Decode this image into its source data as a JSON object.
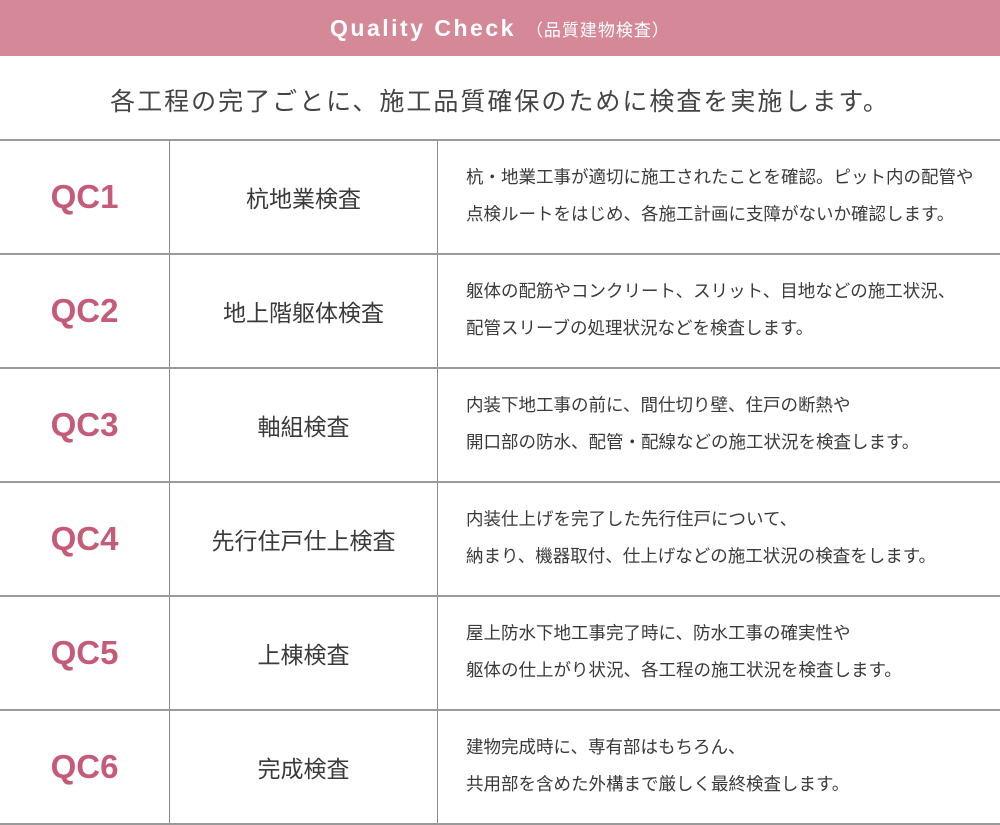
{
  "header": {
    "title_en": "Quality Check",
    "title_jp": "（品質建物検査）",
    "background": "#d48898"
  },
  "lead": "各工程の完了ごとに、施工品質確保のために検査を実施します。",
  "accent_color": "#c45b78",
  "rows": [
    {
      "code": "QC1",
      "name": "杭地業検査",
      "desc": [
        "杭・地業工事が適切に施工されたことを確認。ピット内の配管や",
        "点検ルートをはじめ、各施工計画に支障がないか確認します。"
      ]
    },
    {
      "code": "QC2",
      "name": "地上階躯体検査",
      "desc": [
        "躯体の配筋やコンクリート、スリット、目地などの施工状況、",
        "配管スリーブの処理状況などを検査します。"
      ]
    },
    {
      "code": "QC3",
      "name": "軸組検査",
      "desc": [
        "内装下地工事の前に、間仕切り壁、住戸の断熱や",
        "開口部の防水、配管・配線などの施工状況を検査します。"
      ]
    },
    {
      "code": "QC4",
      "name": "先行住戸仕上検査",
      "desc": [
        "内装仕上げを完了した先行住戸について、",
        "納まり、機器取付、仕上げなどの施工状況の検査をします。"
      ]
    },
    {
      "code": "QC5",
      "name": "上棟検査",
      "desc": [
        "屋上防水下地工事完了時に、防水工事の確実性や",
        "躯体の仕上がり状況、各工程の施工状況を検査します。"
      ]
    },
    {
      "code": "QC6",
      "name": "完成検査",
      "desc": [
        "建物完成時に、専有部はもちろん、",
        "共用部を含めた外構まで厳しく最終検査します。"
      ]
    }
  ]
}
